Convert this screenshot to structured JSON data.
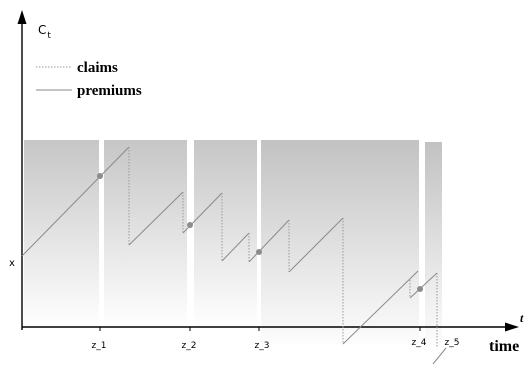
{
  "axes": {
    "y_label_main": "C",
    "y_label_sub": "t",
    "x_label": "time",
    "x_label_partial": "t",
    "x_start_label": "x"
  },
  "legend": {
    "claims_label": "claims",
    "premiums_label": "premiums"
  },
  "ticks": {
    "z1": "z_1",
    "z2": "z_2",
    "z3": "z_3",
    "z4": "z_4",
    "z5": "z_5"
  },
  "colors": {
    "axis": "#000000",
    "premium_line": "#8a8a8a",
    "claim_line": "#9a9a9a",
    "marker": "#888888",
    "band_top": "#c4c4c4",
    "band_bottom": "#ffffff"
  }
}
